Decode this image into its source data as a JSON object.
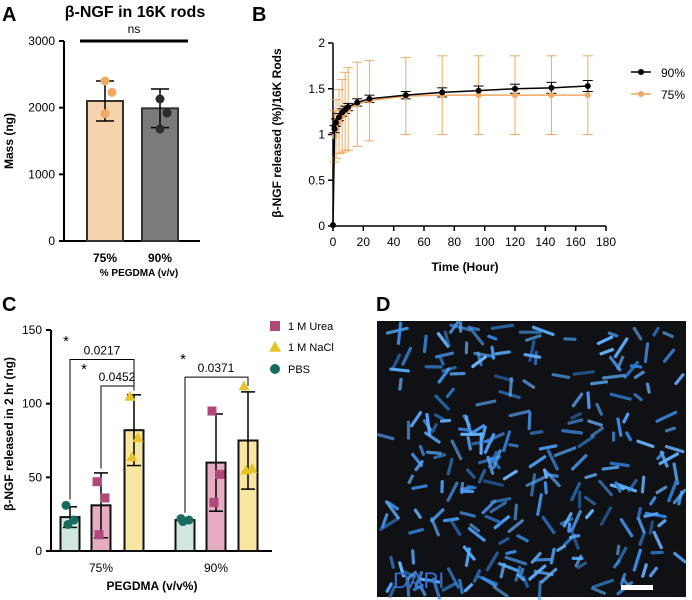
{
  "panels": {
    "a": "A",
    "b": "B",
    "c": "C",
    "d": "D"
  },
  "colors": {
    "p75": "#f7d3ad",
    "p90": "#7b7b7b",
    "pt75": "#f0a862",
    "ptDark": "#2b2b2b",
    "line90": "#000000",
    "line75": "#f0a862",
    "err75": "#f0a862",
    "pbs": "#166c5e",
    "urea": "#b04878",
    "ureaFill": "#e6acc4",
    "nacl": "#e7c32a",
    "naclFill": "#f9e6a3",
    "pbsFill": "#cfe6e1",
    "micBg": "#101114",
    "rod": "#4fa3ff"
  },
  "chart_data": [
    {
      "id": "A",
      "type": "bar",
      "title": "β-NGF in 16K rods",
      "xlabel": "% PEGDMA (v/v)",
      "ylabel": "Mass (ng)",
      "ylim": [
        0,
        3000
      ],
      "yticks": [
        0,
        1000,
        2000,
        3000
      ],
      "categories": [
        "75%",
        "90%"
      ],
      "values": [
        2100,
        1990
      ],
      "errors": [
        300,
        290
      ],
      "points": [
        [
          2400,
          2230,
          1910
        ],
        [
          2130,
          1920,
          1680
        ]
      ],
      "significance": "ns"
    },
    {
      "id": "B",
      "type": "line",
      "xlabel": "Time (Hour)",
      "ylabel": "β-NGF released (%)/16K  Rods",
      "xlim": [
        0,
        180
      ],
      "ylim": [
        0,
        2.0
      ],
      "xticks": [
        0,
        20,
        40,
        60,
        80,
        100,
        120,
        140,
        160,
        180
      ],
      "yticks": [
        0.0,
        0.5,
        1.0,
        1.5,
        2.0
      ],
      "series": [
        {
          "name": "90%",
          "x": [
            0,
            1,
            2,
            4,
            6,
            8,
            10,
            16,
            24,
            48,
            72,
            96,
            120,
            144,
            168
          ],
          "y": [
            0.01,
            1.06,
            1.13,
            1.19,
            1.24,
            1.27,
            1.3,
            1.35,
            1.39,
            1.43,
            1.46,
            1.48,
            1.5,
            1.51,
            1.53
          ],
          "err": [
            0.0,
            0.04,
            0.04,
            0.04,
            0.04,
            0.04,
            0.04,
            0.04,
            0.04,
            0.04,
            0.05,
            0.05,
            0.05,
            0.06,
            0.06
          ]
        },
        {
          "name": "75%",
          "x": [
            0,
            1,
            2,
            4,
            6,
            8,
            10,
            16,
            24,
            48,
            72,
            96,
            120,
            144,
            168
          ],
          "y": [
            0.01,
            0.98,
            1.06,
            1.14,
            1.2,
            1.25,
            1.28,
            1.33,
            1.37,
            1.42,
            1.43,
            1.43,
            1.43,
            1.43,
            1.43
          ],
          "err": [
            0.0,
            0.28,
            0.32,
            0.35,
            0.4,
            0.43,
            0.45,
            0.46,
            0.44,
            0.42,
            0.43,
            0.43,
            0.43,
            0.43,
            0.43
          ]
        }
      ]
    },
    {
      "id": "C",
      "type": "bar",
      "xlabel": "PEGDMA (v/v%)",
      "ylabel": "β-NGF released in 2 hr (ng)",
      "ylim": [
        0,
        150
      ],
      "yticks": [
        0,
        50,
        100,
        150
      ],
      "categories": [
        "75%",
        "90%"
      ],
      "series": [
        {
          "name": "PBS",
          "values": [
            23,
            21
          ],
          "errors": [
            7,
            1
          ],
          "points": [
            [
              31,
              21,
              18
            ],
            [
              22,
              21,
              20
            ]
          ]
        },
        {
          "name": "1 M Urea",
          "values": [
            31,
            60
          ],
          "errors": [
            22,
            33
          ],
          "points": [
            [
              47,
              36,
              11
            ],
            [
              95,
              52,
              33
            ]
          ]
        },
        {
          "name": "1 M NaCl",
          "values": [
            82,
            75
          ],
          "errors": [
            24,
            33
          ],
          "points": [
            [
              105,
              77,
              64
            ],
            [
              112,
              56,
              55
            ]
          ]
        }
      ],
      "annotations": [
        {
          "star": "*",
          "p": "0.0217"
        },
        {
          "star": "*",
          "p": "0.0452"
        },
        {
          "star": "*",
          "p": "0.0371"
        }
      ]
    }
  ],
  "panelD": {
    "label": "DAPI"
  }
}
